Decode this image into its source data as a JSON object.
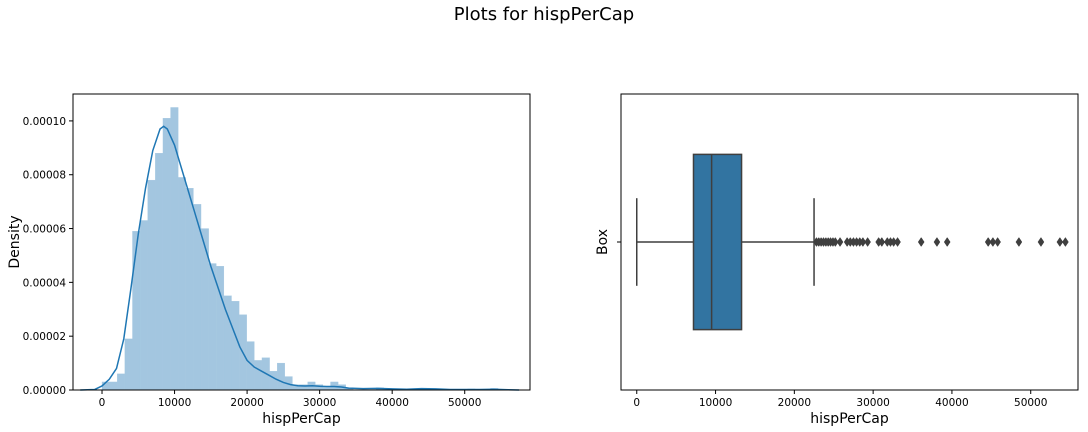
{
  "figure": {
    "title": "Plots for hispPerCap"
  },
  "colors": {
    "hist_fill": "#a3c6e0",
    "kde": "#1f77b4",
    "box_fill": "#3274a1",
    "box_line": "#3f3f3f"
  },
  "chart_data": [
    {
      "type": "histogram",
      "xlabel": "hispPerCap",
      "ylabel": "Density",
      "xlim": [
        -4000,
        59000
      ],
      "ylim": [
        0,
        0.00011
      ],
      "xticks": [
        0,
        10000,
        20000,
        30000,
        40000,
        50000
      ],
      "yticks": [
        0,
        2e-05,
        4e-05,
        6e-05,
        8e-05,
        0.0001
      ],
      "ytick_labels": [
        "0.00000",
        "0.00002",
        "0.00004",
        "0.00006",
        "0.00008",
        "0.00010"
      ],
      "bin_width": 1050,
      "bins": [
        [
          0,
          3e-06
        ],
        [
          1050,
          3e-06
        ],
        [
          2100,
          6e-06
        ],
        [
          3150,
          1.9e-05
        ],
        [
          4200,
          5.9e-05
        ],
        [
          5250,
          6.3e-05
        ],
        [
          6300,
          7.8e-05
        ],
        [
          7350,
          8.8e-05
        ],
        [
          8400,
          0.000101
        ],
        [
          9450,
          0.000105
        ],
        [
          10500,
          7.9e-05
        ],
        [
          11550,
          7.5e-05
        ],
        [
          12600,
          6.9e-05
        ],
        [
          13650,
          6e-05
        ],
        [
          14700,
          4.7e-05
        ],
        [
          15750,
          4.6e-05
        ],
        [
          16800,
          3.5e-05
        ],
        [
          17850,
          3.3e-05
        ],
        [
          18900,
          2.8e-05
        ],
        [
          19950,
          1.8e-05
        ],
        [
          21000,
          1.1e-05
        ],
        [
          22050,
          1.2e-05
        ],
        [
          23100,
          7e-06
        ],
        [
          24150,
          1e-05
        ],
        [
          25200,
          5e-06
        ],
        [
          26250,
          2e-06
        ],
        [
          27300,
          2e-06
        ],
        [
          28350,
          3e-06
        ],
        [
          29400,
          2e-06
        ],
        [
          30450,
          1e-06
        ],
        [
          31500,
          3e-06
        ],
        [
          32550,
          2e-06
        ],
        [
          33600,
          8e-07
        ],
        [
          37800,
          8e-07
        ],
        [
          38850,
          6e-07
        ],
        [
          44100,
          7e-07
        ],
        [
          45150,
          5e-07
        ],
        [
          50400,
          4e-07
        ],
        [
          53550,
          6e-07
        ]
      ],
      "kde": [
        [
          -3000,
          0
        ],
        [
          -1000,
          2e-07
        ],
        [
          0,
          1.5e-06
        ],
        [
          1000,
          4e-06
        ],
        [
          2000,
          8e-06
        ],
        [
          3000,
          1.9e-05
        ],
        [
          4000,
          3.8e-05
        ],
        [
          5000,
          5.8e-05
        ],
        [
          6000,
          7.5e-05
        ],
        [
          7000,
          8.9e-05
        ],
        [
          8000,
          9.7e-05
        ],
        [
          8500,
          9.8e-05
        ],
        [
          9000,
          9.7e-05
        ],
        [
          10000,
          9.1e-05
        ],
        [
          11000,
          8.2e-05
        ],
        [
          12000,
          7.3e-05
        ],
        [
          13000,
          6.4e-05
        ],
        [
          14000,
          5.5e-05
        ],
        [
          15000,
          4.6e-05
        ],
        [
          16000,
          3.8e-05
        ],
        [
          17000,
          3e-05
        ],
        [
          18000,
          2.3e-05
        ],
        [
          19000,
          1.6e-05
        ],
        [
          20000,
          1.1e-05
        ],
        [
          21000,
          8.5e-06
        ],
        [
          22000,
          7e-06
        ],
        [
          23000,
          5.5e-06
        ],
        [
          24000,
          4e-06
        ],
        [
          25000,
          2.8e-06
        ],
        [
          26000,
          2e-06
        ],
        [
          27000,
          1.6e-06
        ],
        [
          28000,
          1.5e-06
        ],
        [
          29000,
          1.6e-06
        ],
        [
          30000,
          1.4e-06
        ],
        [
          31000,
          1.3e-06
        ],
        [
          32000,
          1.3e-06
        ],
        [
          33000,
          1.1e-06
        ],
        [
          34000,
          7e-07
        ],
        [
          36000,
          5e-07
        ],
        [
          38000,
          6e-07
        ],
        [
          40000,
          4e-07
        ],
        [
          42000,
          3e-07
        ],
        [
          44000,
          5e-07
        ],
        [
          46000,
          4e-07
        ],
        [
          48000,
          2e-07
        ],
        [
          50000,
          2e-07
        ],
        [
          52000,
          2e-07
        ],
        [
          54000,
          3e-07
        ],
        [
          56000,
          1e-07
        ],
        [
          57500,
          0
        ]
      ]
    },
    {
      "type": "box",
      "xlabel": "hispPerCap",
      "ylabel": "Box",
      "xlim": [
        -2000,
        56000
      ],
      "xticks": [
        0,
        10000,
        20000,
        30000,
        40000,
        50000
      ],
      "whisker_low": 0,
      "q1": 7200,
      "median": 9500,
      "q3": 13300,
      "whisker_high": 22500,
      "outliers": [
        22800,
        23100,
        23400,
        23700,
        24000,
        24300,
        24600,
        24900,
        25200,
        25800,
        26700,
        27100,
        27500,
        27900,
        28300,
        28700,
        29300,
        30700,
        31100,
        31800,
        32200,
        32600,
        33100,
        36100,
        38100,
        39400,
        44600,
        45200,
        45800,
        48500,
        51300,
        53700,
        54400
      ]
    }
  ]
}
